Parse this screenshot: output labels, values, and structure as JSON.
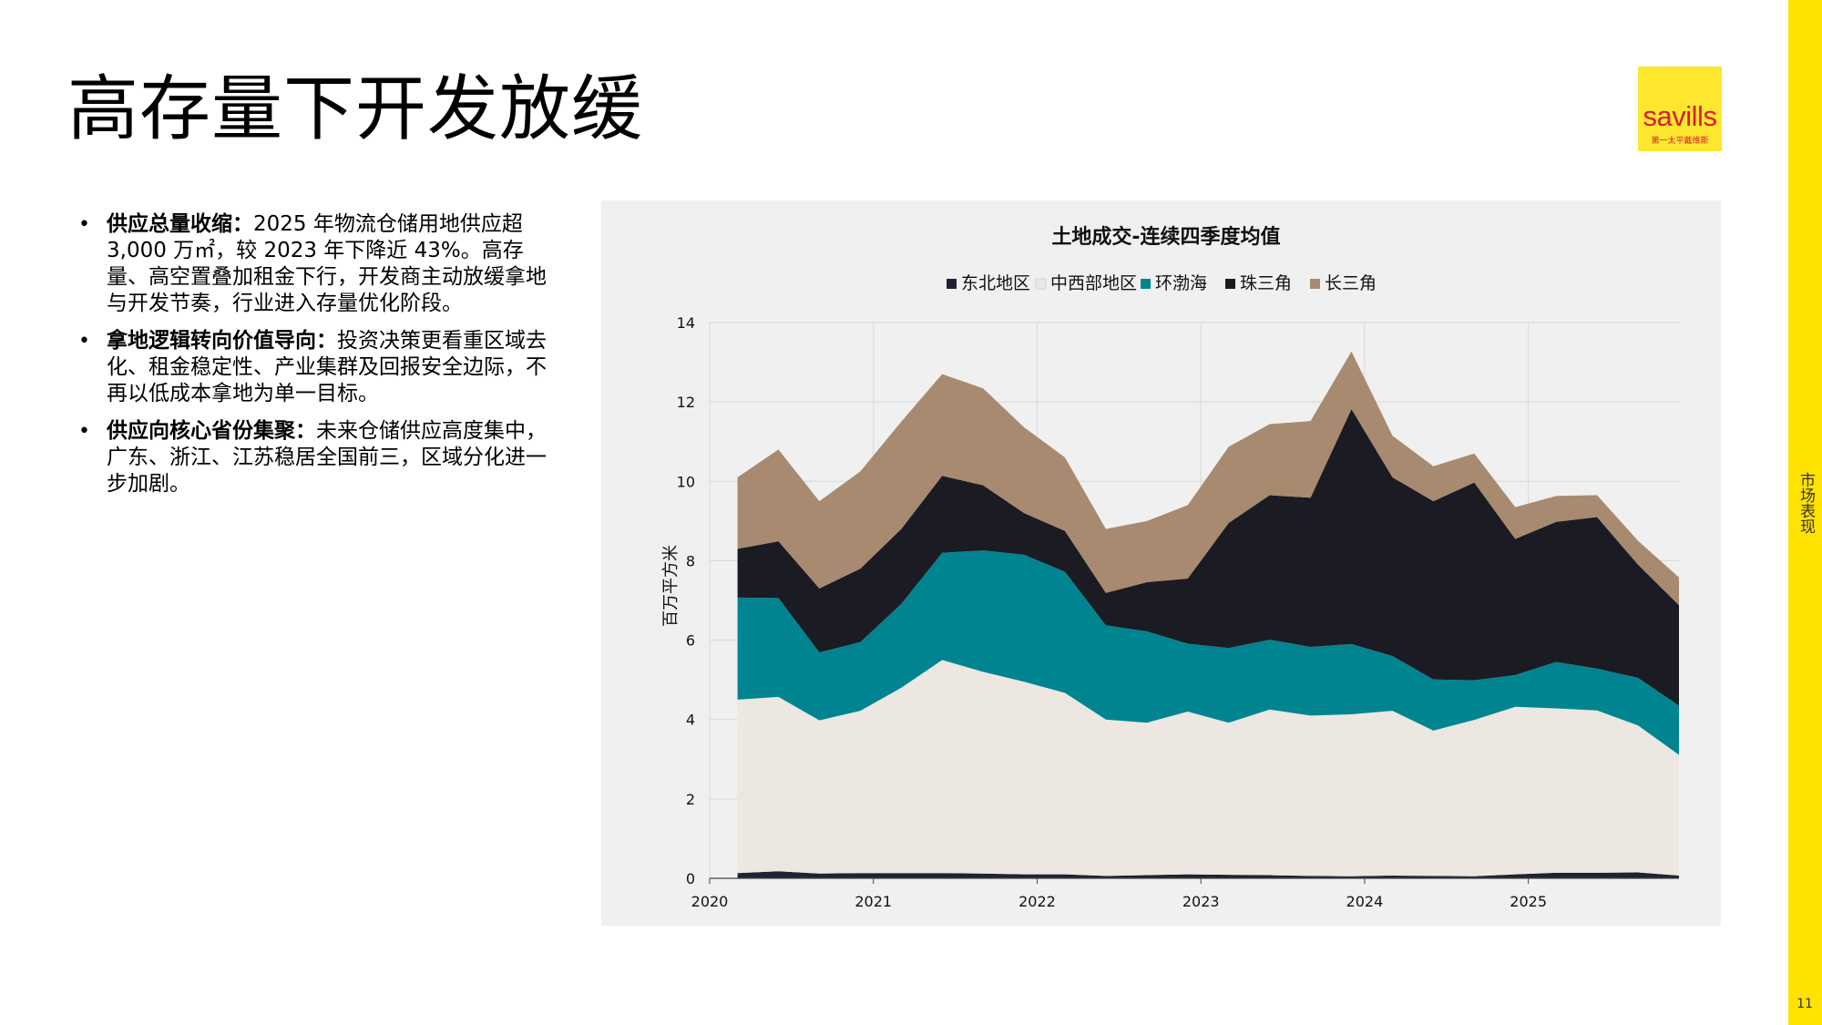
{
  "page": {
    "title": "高存量下开发放缓",
    "sidebar_label": "市场表现",
    "page_number": "11",
    "logo": {
      "word": "savills",
      "sub": "第一太平戴维斯"
    }
  },
  "bullets": [
    {
      "bold": "供应总量收缩：",
      "text": "2025 年物流仓储用地供应超 3,000 万㎡，较 2023 年下降近 43%。高存量、高空置叠加租金下行，开发商主动放缓拿地与开发节奏，行业进入存量优化阶段。"
    },
    {
      "bold": "拿地逻辑转向价值导向：",
      "text": "投资决策更看重区域去化、租金稳定性、产业集群及回报安全边际，不再以低成本拿地为单一目标。"
    },
    {
      "bold": "供应向核心省份集聚：",
      "text": "未来仓储供应高度集中，广东、浙江、江苏稳居全国前三，区域分化进一步加剧。"
    }
  ],
  "chart_data": {
    "type": "area",
    "stacked": true,
    "title": "土地成交-连续四季度均值",
    "ylabel": "百万平方米",
    "ylim": [
      0,
      14
    ],
    "yticks": [
      0,
      2,
      4,
      6,
      8,
      10,
      12,
      14
    ],
    "xlim": [
      2020.0,
      2025.92
    ],
    "xticks": [
      "2020",
      "2021",
      "2022",
      "2023",
      "2024",
      "2025"
    ],
    "grid": true,
    "legend_position": "top",
    "x": [
      2020.17,
      2020.42,
      2020.67,
      2020.92,
      2021.17,
      2021.42,
      2021.67,
      2021.92,
      2022.17,
      2022.42,
      2022.67,
      2022.92,
      2023.17,
      2023.42,
      2023.67,
      2023.92,
      2024.17,
      2024.42,
      2024.67,
      2024.92,
      2025.17,
      2025.42,
      2025.67,
      2025.92
    ],
    "series": [
      {
        "name": "东北地区",
        "color": "#1f2233",
        "values": [
          0.13,
          0.18,
          0.12,
          0.13,
          0.13,
          0.13,
          0.12,
          0.1,
          0.1,
          0.06,
          0.08,
          0.1,
          0.09,
          0.08,
          0.06,
          0.05,
          0.07,
          0.06,
          0.05,
          0.1,
          0.14,
          0.14,
          0.15,
          0.07
        ]
      },
      {
        "name": "中西部地区",
        "color": "#ece7e0",
        "values": [
          4.37,
          4.39,
          3.86,
          4.09,
          4.67,
          5.37,
          5.08,
          4.85,
          4.57,
          3.94,
          3.84,
          4.1,
          3.83,
          4.17,
          4.04,
          4.08,
          4.15,
          3.66,
          3.94,
          4.22,
          4.14,
          4.09,
          3.7,
          3.04
        ]
      },
      {
        "name": "环渤海",
        "color": "#008590",
        "values": [
          2.57,
          2.49,
          1.71,
          1.73,
          2.11,
          2.7,
          3.06,
          3.2,
          3.05,
          2.37,
          2.3,
          1.71,
          1.88,
          1.76,
          1.73,
          1.77,
          1.38,
          1.29,
          1.0,
          0.8,
          1.17,
          1.05,
          1.2,
          1.24
        ]
      },
      {
        "name": "珠三角",
        "color": "#1b1b24",
        "values": [
          1.23,
          1.43,
          1.61,
          1.85,
          1.89,
          1.94,
          1.64,
          1.05,
          1.03,
          0.82,
          1.24,
          1.64,
          3.15,
          3.64,
          3.76,
          5.92,
          4.5,
          4.49,
          4.98,
          3.43,
          3.53,
          3.82,
          2.85,
          2.53
        ]
      },
      {
        "name": "长三角",
        "color": "#a78a6f",
        "values": [
          1.8,
          2.31,
          2.2,
          2.45,
          2.7,
          2.56,
          2.44,
          2.16,
          1.85,
          1.61,
          1.54,
          1.85,
          1.92,
          1.79,
          1.93,
          1.45,
          1.05,
          0.88,
          0.73,
          0.8,
          0.65,
          0.55,
          0.6,
          0.7
        ]
      }
    ]
  }
}
